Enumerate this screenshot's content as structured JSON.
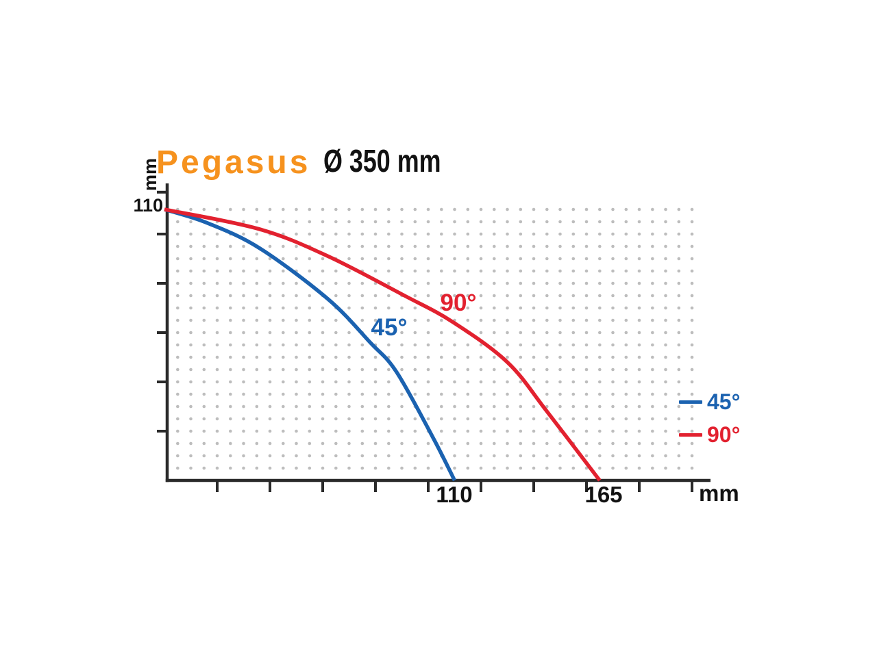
{
  "header": {
    "brand": "Pegasus",
    "diameter": "Ø 350 mm"
  },
  "y_axis": {
    "unit_label": "mm",
    "max_label": "110"
  },
  "x_axis": {
    "unit_label": "mm",
    "value_labels": [
      "110",
      "165"
    ]
  },
  "curve_annotations": {
    "deg45": "45°",
    "deg90": "90°"
  },
  "legend": {
    "items": [
      {
        "label": "45°",
        "color": "#1B62B0"
      },
      {
        "label": "90°",
        "color": "#E2212F"
      }
    ]
  },
  "colors": {
    "accent_orange": "#F6921E",
    "curve_45": "#1B62B0",
    "curve_90": "#E2212F",
    "axis": "#2A2A2A",
    "grid_dots": "#BDBDBD",
    "text": "#121212",
    "background": "#FFFFFF"
  },
  "chart_data": {
    "type": "line",
    "title": "Pegasus Ø 350 mm cutting capacity",
    "xlabel": "mm",
    "ylabel": "mm",
    "xlim": [
      0,
      207
    ],
    "ylim": [
      0,
      121
    ],
    "x_ticks": [
      20,
      40,
      60,
      80,
      100,
      120,
      140,
      160,
      180,
      200
    ],
    "y_ticks": [
      20,
      40,
      60,
      80,
      100,
      117
    ],
    "grid": {
      "style": "dots",
      "step_mm": 5,
      "x_max": 200,
      "y_max": 110
    },
    "legend_position": "right",
    "series": [
      {
        "name": "45°",
        "color": "#1B62B0",
        "start_height_mm": 110,
        "x_intercept_mm": 110,
        "points": [
          [
            0,
            110
          ],
          [
            16,
            104.6
          ],
          [
            36,
            94.3
          ],
          [
            62,
            73.6
          ],
          [
            78,
            56
          ],
          [
            88,
            44
          ],
          [
            102,
            17
          ],
          [
            110,
            0
          ]
        ]
      },
      {
        "name": "90°",
        "color": "#E2212F",
        "start_height_mm": 110,
        "x_intercept_mm": 165,
        "points": [
          [
            0,
            110
          ],
          [
            36,
            102
          ],
          [
            62,
            91
          ],
          [
            91,
            75
          ],
          [
            109,
            64.5
          ],
          [
            130,
            48
          ],
          [
            145,
            28
          ],
          [
            165,
            0
          ]
        ]
      }
    ],
    "axis_value_labels": {
      "y": [
        110
      ],
      "x": [
        110,
        165
      ]
    }
  }
}
